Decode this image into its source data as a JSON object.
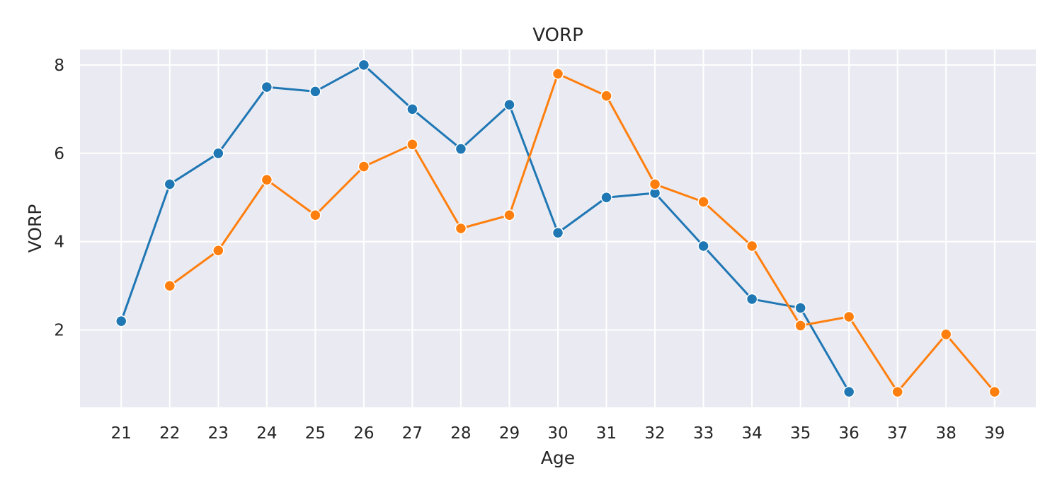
{
  "chart_data": {
    "type": "line",
    "title": "VORP",
    "xlabel": "Age",
    "ylabel": "VORP",
    "xlim": [
      20.15,
      39.85
    ],
    "ylim": [
      0.25,
      8.35
    ],
    "x_ticks": [
      21,
      22,
      23,
      24,
      25,
      26,
      27,
      28,
      29,
      30,
      31,
      32,
      33,
      34,
      35,
      36,
      37,
      38,
      39
    ],
    "y_ticks": [
      2,
      4,
      6,
      8
    ],
    "grid": true,
    "legend": null,
    "series": [
      {
        "color": "#1f77b4",
        "x": [
          21,
          22,
          23,
          24,
          25,
          26,
          27,
          28,
          29,
          30,
          31,
          32,
          33,
          34,
          35,
          36
        ],
        "y": [
          2.2,
          5.3,
          6.0,
          7.5,
          7.4,
          8.0,
          7.0,
          6.1,
          7.1,
          4.2,
          5.0,
          5.1,
          3.9,
          2.7,
          2.5,
          0.6
        ]
      },
      {
        "color": "#ff7f0e",
        "x": [
          22,
          23,
          24,
          25,
          26,
          27,
          28,
          29,
          30,
          31,
          32,
          33,
          34,
          35,
          36,
          37,
          38,
          39
        ],
        "y": [
          3.0,
          3.8,
          5.4,
          4.6,
          5.7,
          6.2,
          4.3,
          4.6,
          7.8,
          7.3,
          5.3,
          4.9,
          3.9,
          2.1,
          2.3,
          0.6,
          1.9,
          0.6
        ]
      }
    ]
  }
}
